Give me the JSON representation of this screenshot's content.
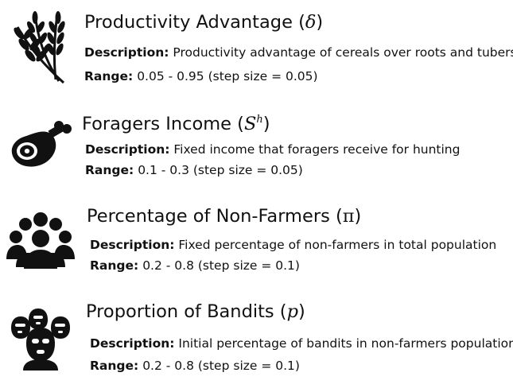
{
  "parameters": [
    {
      "icon": "wheat-icon",
      "name": "Productivity Advantage",
      "symbol": "δ",
      "symbol_sup": "",
      "description_label": "Description:",
      "description": "Productivity advantage of cereals over roots and tubers",
      "range_label": "Range:",
      "range": "0.05 - 0.95 (step size = 0.05)"
    },
    {
      "icon": "ham-icon",
      "name": "Foragers Income",
      "symbol": "S",
      "symbol_sup": "h",
      "description_label": "Description:",
      "description": "Fixed income that foragers receive for hunting",
      "range_label": "Range:",
      "range": "0.1 - 0.3 (step size = 0.05)"
    },
    {
      "icon": "people-group-icon",
      "name": "Percentage of Non-Farmers",
      "symbol": "π",
      "symbol_sup": "",
      "description_label": "Description:",
      "description": "Fixed percentage of non-farmers in total population",
      "range_label": "Range:",
      "range": "0.2 - 0.8 (step size = 0.1)"
    },
    {
      "icon": "masked-bandits-icon",
      "name": "Proportion of Bandits",
      "symbol": "p",
      "symbol_sup": "",
      "description_label": "Description:",
      "description": "Initial percentage of bandits in non-farmers population",
      "range_label": "Range:",
      "range": "0.2 - 0.8 (step size = 0.1)"
    }
  ]
}
